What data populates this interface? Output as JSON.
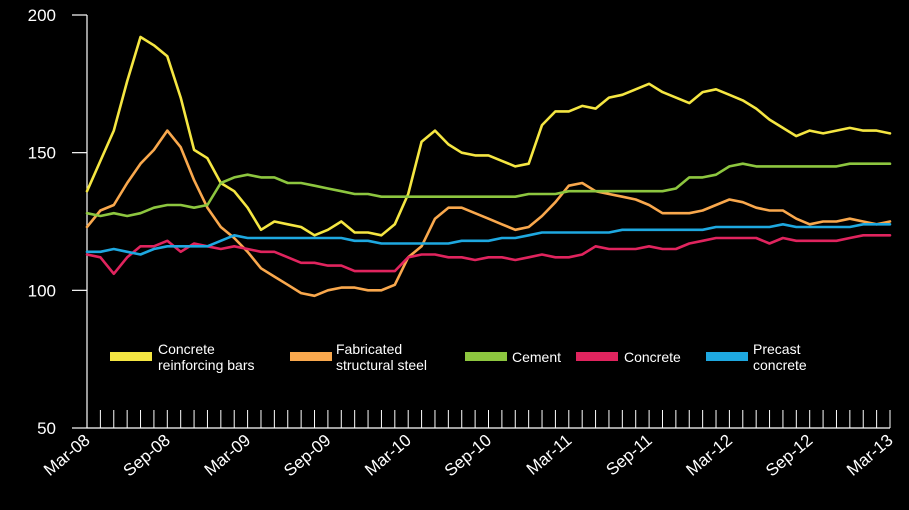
{
  "chart_data": {
    "type": "line",
    "title": "",
    "xlabel": "",
    "ylabel": "",
    "ylim": [
      50,
      200
    ],
    "y_ticks": [
      "50",
      "100",
      "150",
      "200"
    ],
    "x_ticks": [
      "Mar-08",
      "Sep-08",
      "Mar-09",
      "Sep-09",
      "Mar-10",
      "Sep-10",
      "Mar-11",
      "Sep-11",
      "Mar-12",
      "Sep-12",
      "Mar-13"
    ],
    "x_tick_months": [
      0,
      6,
      12,
      18,
      24,
      30,
      36,
      42,
      48,
      54,
      60
    ],
    "grid": false,
    "legend_position": "bottom",
    "months": [
      0,
      1,
      2,
      3,
      4,
      5,
      6,
      7,
      8,
      9,
      10,
      11,
      12,
      13,
      14,
      15,
      16,
      17,
      18,
      19,
      20,
      21,
      22,
      23,
      24,
      25,
      26,
      27,
      28,
      29,
      30,
      31,
      32,
      33,
      34,
      35,
      36,
      37,
      38,
      39,
      40,
      41,
      42,
      43,
      44,
      45,
      46,
      47,
      48,
      49,
      50,
      51,
      52,
      53,
      54,
      55,
      56,
      57,
      58,
      59,
      60
    ],
    "series": [
      {
        "name": "Concrete reinforcing bars",
        "color": "#f5e642",
        "values": [
          136,
          147,
          158,
          176,
          192,
          189,
          185,
          170,
          151,
          148,
          139,
          136,
          130,
          122,
          125,
          124,
          123,
          120,
          122,
          125,
          121,
          121,
          120,
          124,
          135,
          154,
          158,
          153,
          150,
          149,
          149,
          147,
          145,
          146,
          160,
          165,
          165,
          167,
          166,
          170,
          171,
          173,
          175,
          172,
          170,
          168,
          172,
          173,
          171,
          169,
          166,
          162,
          159,
          156,
          158,
          157,
          158,
          159,
          158,
          158,
          157
        ]
      },
      {
        "name": "Fabricated structural steel",
        "color": "#f9a84d",
        "values": [
          123,
          129,
          131,
          139,
          146,
          151,
          158,
          152,
          140,
          130,
          123,
          119,
          114,
          108,
          105,
          102,
          99,
          98,
          100,
          101,
          101,
          100,
          100,
          102,
          112,
          116,
          126,
          130,
          130,
          128,
          126,
          124,
          122,
          123,
          127,
          132,
          138,
          139,
          136,
          135,
          134,
          133,
          131,
          128,
          128,
          128,
          129,
          131,
          133,
          132,
          130,
          129,
          129,
          126,
          124,
          125,
          125,
          126,
          125,
          124,
          125
        ]
      },
      {
        "name": "Cement",
        "color": "#8dc63f",
        "values": [
          128,
          127,
          128,
          127,
          128,
          130,
          131,
          131,
          130,
          131,
          139,
          141,
          142,
          141,
          141,
          139,
          139,
          138,
          137,
          136,
          135,
          135,
          134,
          134,
          134,
          134,
          134,
          134,
          134,
          134,
          134,
          134,
          134,
          135,
          135,
          135,
          136,
          136,
          136,
          136,
          136,
          136,
          136,
          136,
          137,
          141,
          141,
          142,
          145,
          146,
          145,
          145,
          145,
          145,
          145,
          145,
          145,
          146,
          146,
          146,
          146
        ]
      },
      {
        "name": "Concrete",
        "color": "#e0245e",
        "values": [
          113,
          112,
          106,
          112,
          116,
          116,
          118,
          114,
          117,
          116,
          115,
          116,
          115,
          114,
          114,
          112,
          110,
          110,
          109,
          109,
          107,
          107,
          107,
          107,
          112,
          113,
          113,
          112,
          112,
          111,
          112,
          112,
          111,
          112,
          113,
          112,
          112,
          113,
          116,
          115,
          115,
          115,
          116,
          115,
          115,
          117,
          118,
          119,
          119,
          119,
          119,
          117,
          119,
          118,
          118,
          118,
          118,
          119,
          120,
          120,
          120
        ]
      },
      {
        "name": "Precast concrete",
        "color": "#1ea8e0",
        "values": [
          114,
          114,
          115,
          114,
          113,
          115,
          116,
          116,
          116,
          116,
          118,
          120,
          119,
          119,
          119,
          119,
          119,
          119,
          119,
          119,
          118,
          118,
          117,
          117,
          117,
          117,
          117,
          117,
          118,
          118,
          118,
          119,
          119,
          120,
          121,
          121,
          121,
          121,
          121,
          121,
          122,
          122,
          122,
          122,
          122,
          122,
          122,
          123,
          123,
          123,
          123,
          123,
          124,
          123,
          123,
          123,
          123,
          123,
          124,
          124,
          124
        ]
      }
    ]
  },
  "legend": {
    "items": [
      {
        "label_line1": "Concrete",
        "label_line2": "reinforcing bars"
      },
      {
        "label_line1": "Fabricated",
        "label_line2": "structural steel"
      },
      {
        "label_line1": "Cement",
        "label_line2": ""
      },
      {
        "label_line1": "Concrete",
        "label_line2": ""
      },
      {
        "label_line1": "Precast",
        "label_line2": "concrete"
      }
    ]
  }
}
